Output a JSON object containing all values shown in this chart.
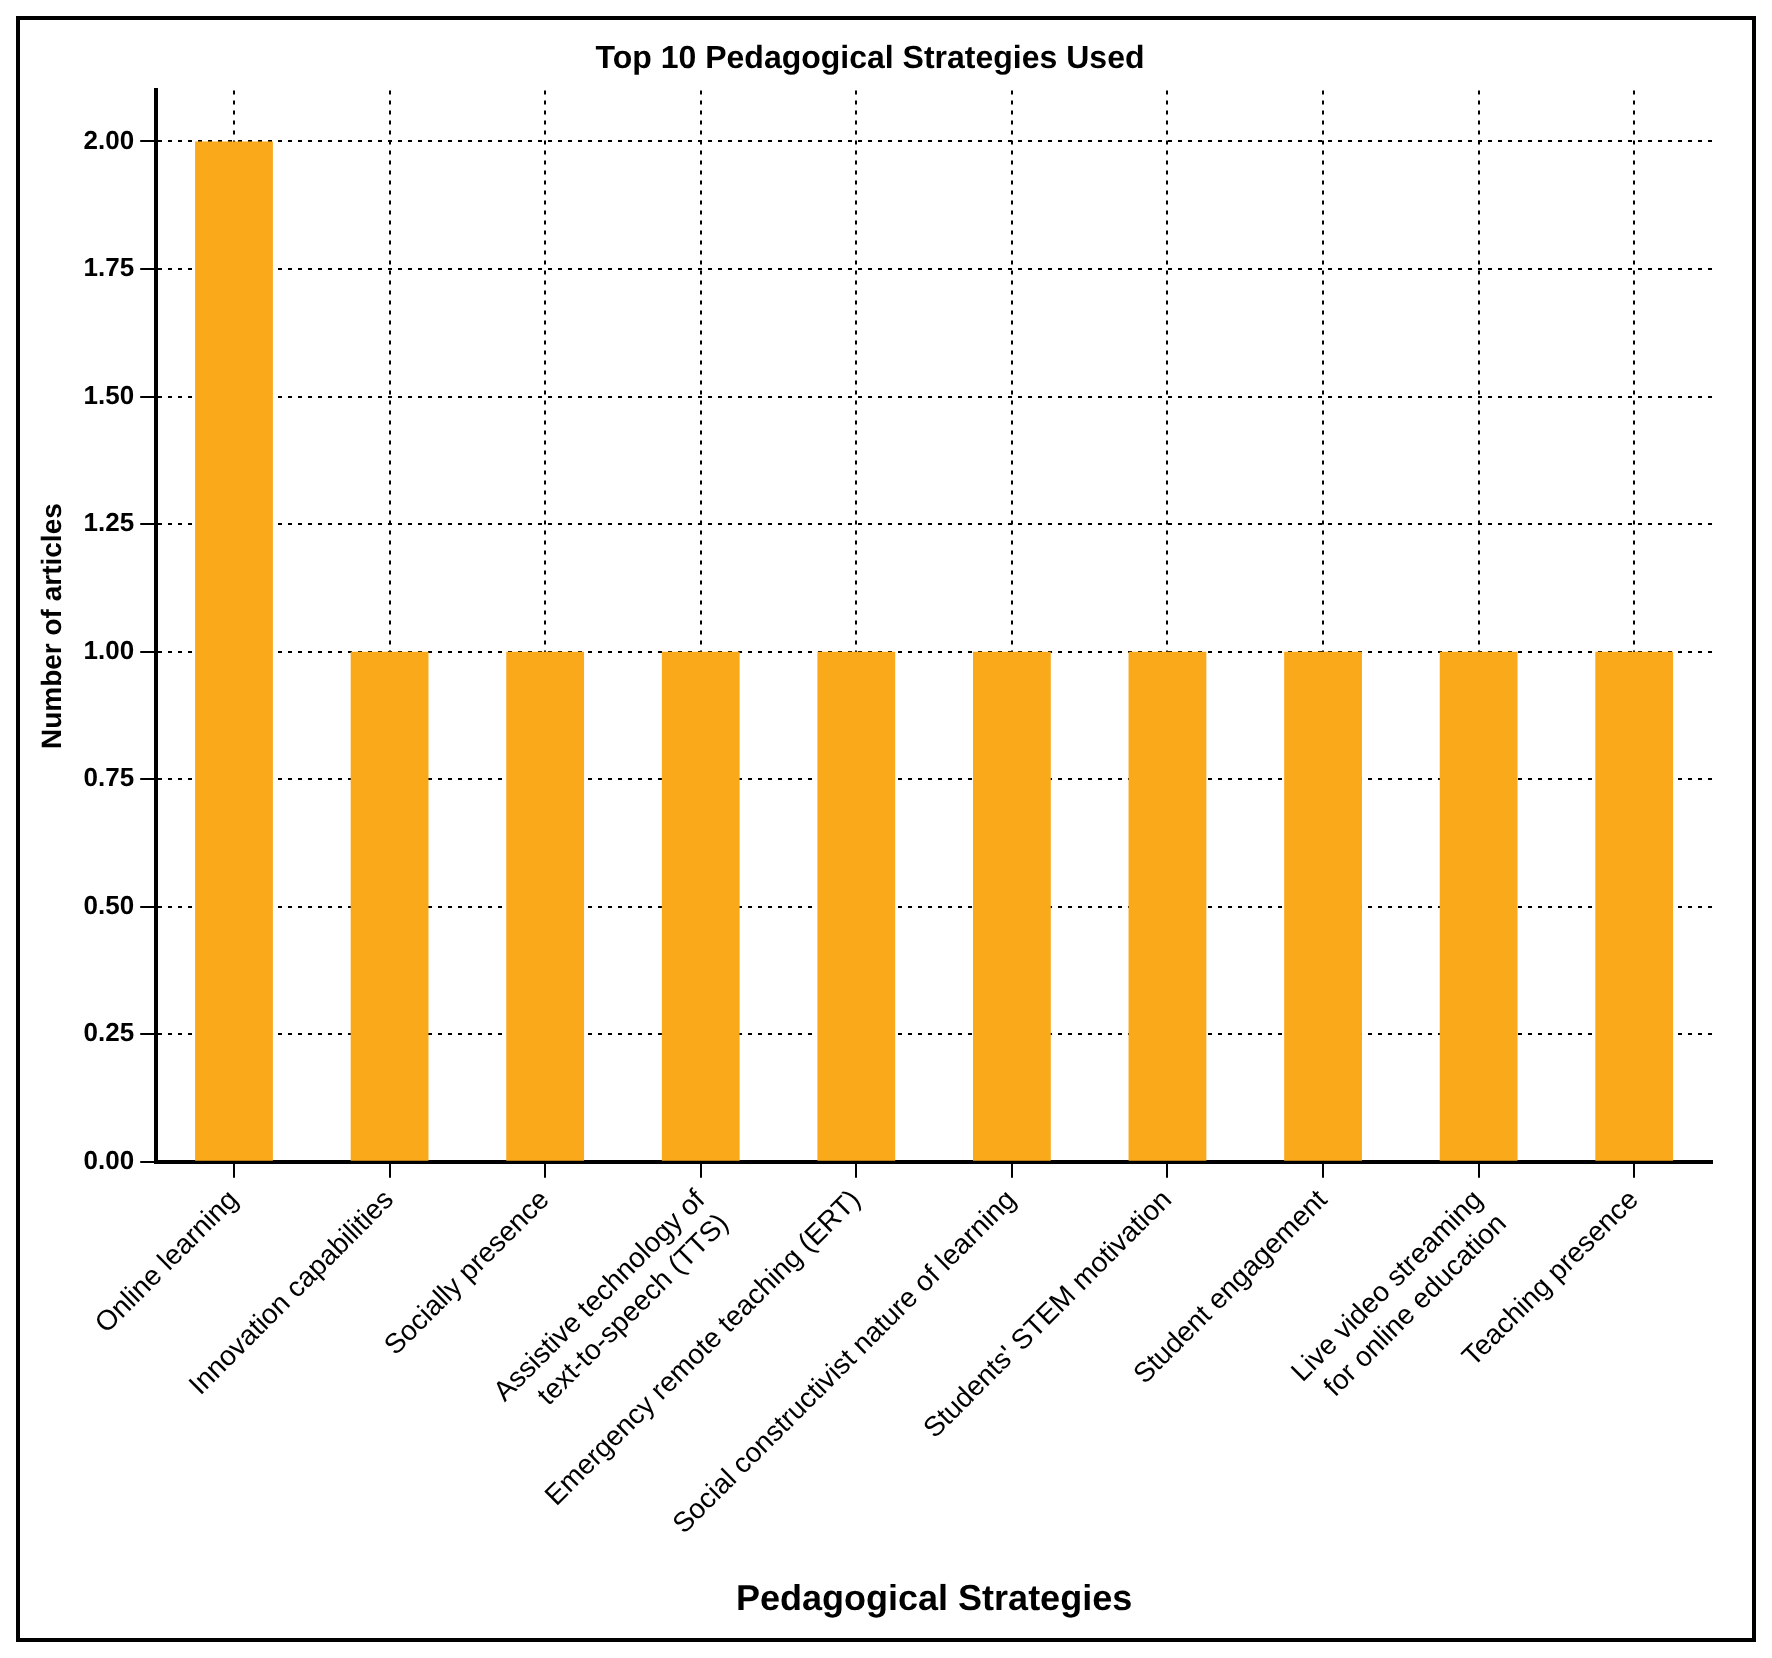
{
  "chart_data": {
    "type": "bar",
    "title": "Top 10 Pedagogical Strategies Used",
    "xlabel": "Pedagogical Strategies",
    "ylabel": "Number of articles",
    "categories": [
      "Online learning",
      "Innovation capabilities",
      "Socially presence",
      "Assistive technology of\ntext-to-speech (TTS)",
      "Emergency remote teaching (ERT)",
      "Social constructivist nature of learning",
      "Students' STEM motivation",
      "Student engagement",
      "Live video streaming\nfor online education",
      "Teaching presence"
    ],
    "values": [
      2,
      1,
      1,
      1,
      1,
      1,
      1,
      1,
      1,
      1
    ],
    "color": "#f9a91a",
    "ylim": [
      0,
      2.1
    ],
    "yticks": [
      {
        "value": 0,
        "label": "0.00"
      },
      0.25,
      {
        "value": 0.5,
        "label": "0.50"
      },
      0.75,
      {
        "value": 1,
        "label": "1.00"
      },
      1.25,
      {
        "value": 1.5,
        "label": "1.50"
      },
      1.75,
      {
        "value": 2,
        "label": "2.00"
      }
    ],
    "grid": true,
    "line_style": "dotted"
  }
}
